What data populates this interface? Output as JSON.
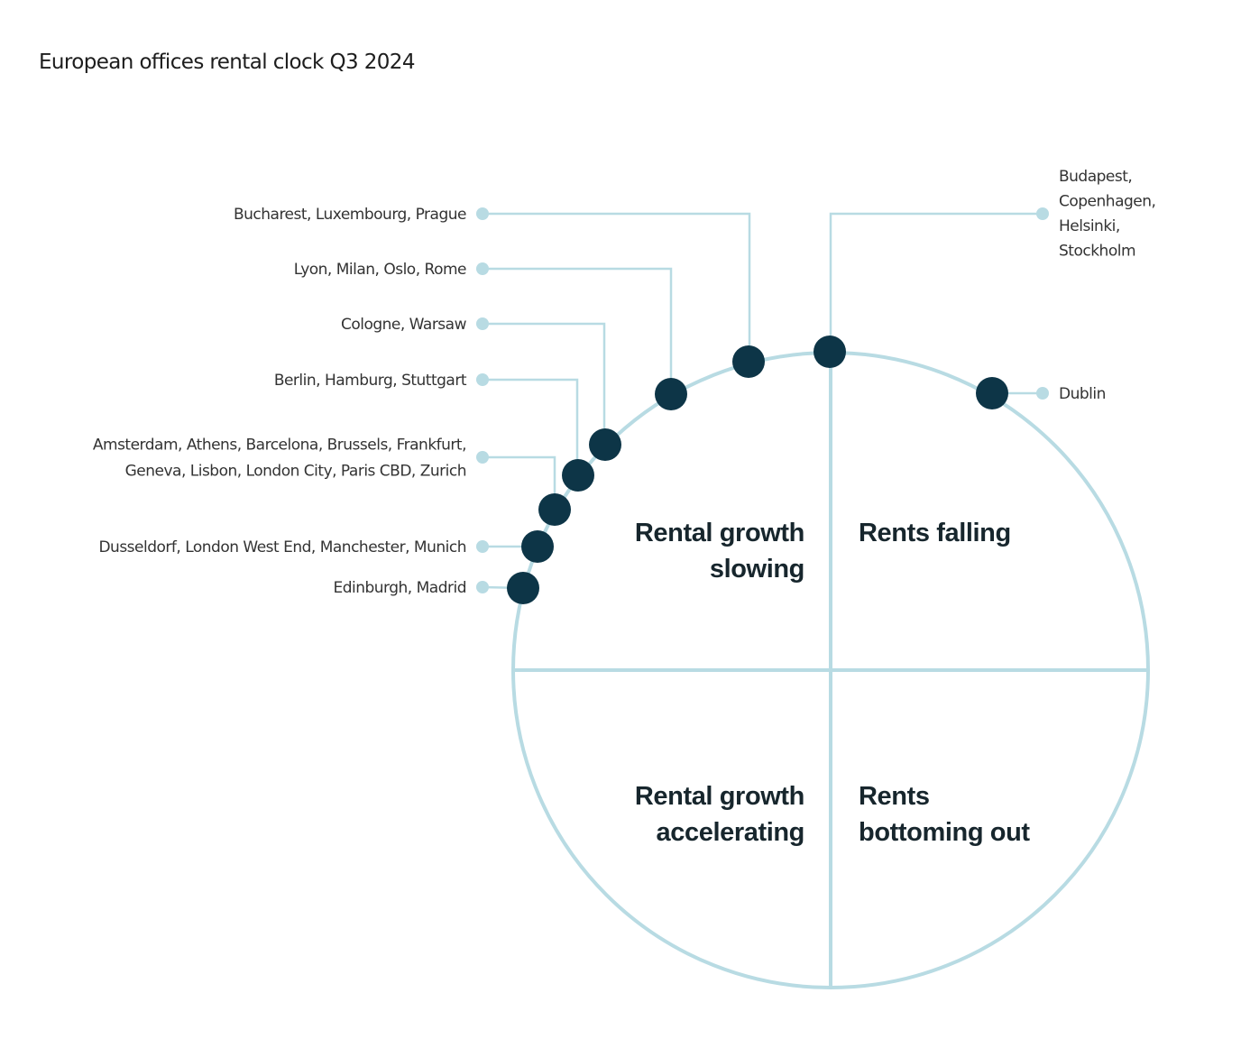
{
  "title": "European offices rental clock Q3 2024",
  "colors": {
    "dot": "#0d3547",
    "line": "#b8dbe3",
    "text": "#333333"
  },
  "quadrants": {
    "top_left": [
      "Rental growth",
      "slowing"
    ],
    "top_right": [
      "Rents falling"
    ],
    "bottom_left": [
      "Rental growth",
      "accelerating"
    ],
    "bottom_right": [
      "Rents",
      "bottoming out"
    ]
  },
  "groups": [
    {
      "lines": [
        "Bucharest, Luxembourg, Prague"
      ]
    },
    {
      "lines": [
        "Lyon, Milan, Oslo, Rome"
      ]
    },
    {
      "lines": [
        "Cologne, Warsaw"
      ]
    },
    {
      "lines": [
        "Berlin, Hamburg, Stuttgart"
      ]
    },
    {
      "lines": [
        "Amsterdam, Athens, Barcelona, Brussels, Frankfurt,",
        "Geneva, Lisbon, London City, Paris CBD, Zurich"
      ]
    },
    {
      "lines": [
        "Dusseldorf, London West End,  Manchester, Munich"
      ]
    },
    {
      "lines": [
        "Edinburgh, Madrid"
      ]
    },
    {
      "lines": [
        "Budapest,",
        "Copenhagen,",
        "Helsinki,",
        "Stockholm"
      ]
    },
    {
      "lines": [
        "Dublin"
      ]
    }
  ]
}
